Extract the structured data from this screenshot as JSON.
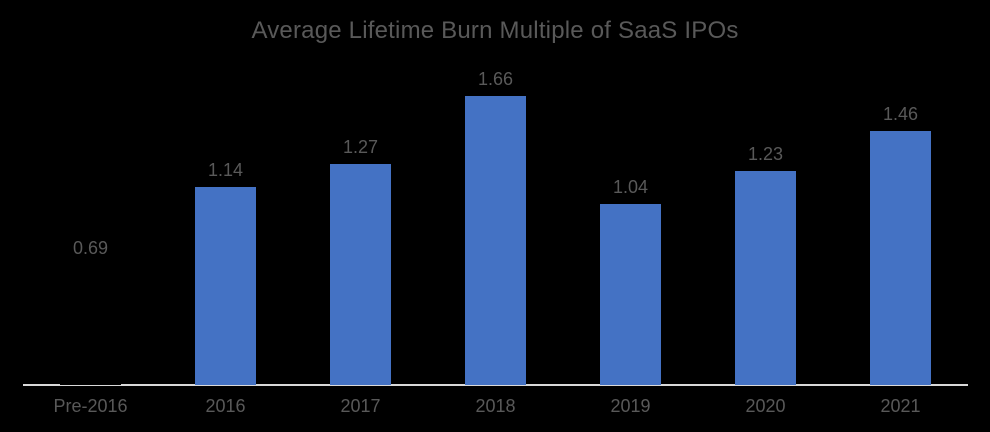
{
  "chart_data": {
    "type": "bar",
    "title": "Average Lifetime Burn Multiple of SaaS IPOs",
    "categories": [
      "Pre-2016",
      "2016",
      "2017",
      "2018",
      "2019",
      "2020",
      "2021"
    ],
    "values": [
      0.69,
      1.14,
      1.27,
      1.66,
      1.04,
      1.23,
      1.46
    ],
    "value_labels": [
      "0.69",
      "1.14",
      "1.27",
      "1.66",
      "1.04",
      "1.23",
      "1.46"
    ],
    "bar_colors": [
      "#000000",
      "#4472c4",
      "#4472c4",
      "#4472c4",
      "#4472c4",
      "#4472c4",
      "#4472c4"
    ],
    "xlabel": "",
    "ylabel": "",
    "ylim": [
      0,
      1.8
    ],
    "grid": "off",
    "legend": "none",
    "colors": {
      "background": "#000000",
      "bar_accent": "#4472c4",
      "axis_line": "#d9d9d9",
      "title_text": "#595959",
      "label_text": "#595959"
    }
  }
}
